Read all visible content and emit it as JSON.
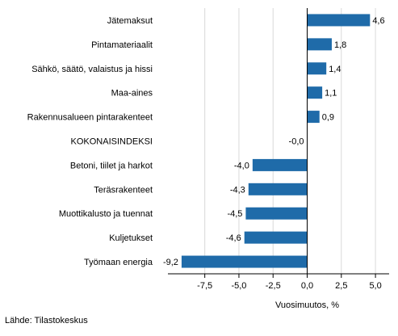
{
  "chart_data": {
    "type": "bar",
    "orientation": "horizontal",
    "categories": [
      "Jätemaksut",
      "Pintamateriaalit",
      "Sähkö, säätö, valaistus ja hissi",
      "Maa-aines",
      "Rakennusalueen pintarakenteet",
      "KOKONAISINDEKSI",
      "Betoni, tiilet ja harkot",
      "Teräsrakenteet",
      "Muottikalusto ja tuennat",
      "Kuljetukset",
      "Työmaan energia"
    ],
    "values": [
      4.6,
      1.8,
      1.4,
      1.1,
      0.9,
      -0.0,
      -4.0,
      -4.3,
      -4.5,
      -4.6,
      -9.2
    ],
    "value_labels": [
      "4,6",
      "1,8",
      "1,4",
      "1,1",
      "0,9",
      "-0,0",
      "-4,0",
      "-4,3",
      "-4,5",
      "-4,6",
      "-9,2"
    ],
    "xticks": [
      -7.5,
      -5.0,
      -2.5,
      0.0,
      2.5,
      5.0
    ],
    "xtick_labels": [
      "-7,5",
      "-5,0",
      "-2,5",
      "0,0",
      "2,5",
      "5,0"
    ],
    "xlim": [
      -10.2,
      6.0
    ],
    "xlabel": "Vuosimuutos, %",
    "title": "",
    "bar_color": "#1f6ba9",
    "grid": "vertical",
    "legend": "none"
  },
  "source": "Lähde: Tilastokeskus"
}
